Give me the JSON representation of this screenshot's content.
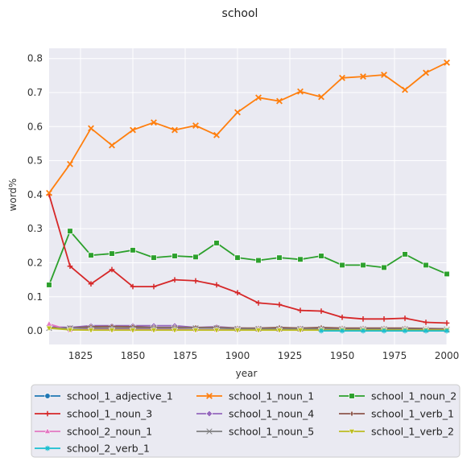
{
  "chart_data": {
    "type": "line",
    "title": "school",
    "xlabel": "year",
    "ylabel": "word%",
    "xlim": [
      1810,
      2000
    ],
    "ylim": [
      -0.04,
      0.83
    ],
    "xticks": [
      "1825",
      "1850",
      "1875",
      "1900",
      "1925",
      "1950",
      "1975",
      "2000"
    ],
    "yticks": [
      "0.0",
      "0.1",
      "0.2",
      "0.3",
      "0.4",
      "0.5",
      "0.6",
      "0.7",
      "0.8"
    ],
    "grid": true,
    "legend_position": "bottom",
    "x": [
      1810,
      1820,
      1830,
      1840,
      1850,
      1860,
      1870,
      1880,
      1890,
      1900,
      1910,
      1920,
      1930,
      1940,
      1950,
      1960,
      1970,
      1980,
      1990,
      2000
    ],
    "series": [
      {
        "name": "school_1_adjective_1",
        "color": "#1f77b4",
        "marker": "circle",
        "values": [
          null,
          null,
          null,
          null,
          null,
          null,
          null,
          null,
          null,
          null,
          null,
          null,
          null,
          null,
          null,
          null,
          null,
          null,
          null,
          null
        ]
      },
      {
        "name": "school_1_noun_1",
        "color": "#ff7f0e",
        "marker": "x",
        "values": [
          0.405,
          0.49,
          0.595,
          0.545,
          0.59,
          0.612,
          0.59,
          0.603,
          0.575,
          0.642,
          0.685,
          0.675,
          0.703,
          0.687,
          0.743,
          0.747,
          0.752,
          0.708,
          0.758,
          0.788
        ]
      },
      {
        "name": "school_1_noun_2",
        "color": "#2ca02c",
        "marker": "square",
        "values": [
          0.135,
          0.293,
          0.222,
          0.227,
          0.237,
          0.215,
          0.22,
          0.217,
          0.258,
          0.215,
          0.207,
          0.215,
          0.21,
          0.22,
          0.193,
          0.193,
          0.186,
          0.225,
          0.193,
          0.167
        ]
      },
      {
        "name": "school_1_noun_3",
        "color": "#d62728",
        "marker": "plus",
        "values": [
          0.4,
          0.19,
          0.138,
          0.18,
          0.13,
          0.13,
          0.15,
          0.147,
          0.135,
          0.112,
          0.082,
          0.077,
          0.06,
          0.058,
          0.04,
          0.035,
          0.035,
          0.037,
          0.025,
          0.023
        ]
      },
      {
        "name": "school_1_noun_4",
        "color": "#9467bd",
        "marker": "diamond",
        "values": [
          0.012,
          0.01,
          0.015,
          0.015,
          0.015,
          0.015,
          0.015,
          0.01,
          0.012,
          0.008,
          0.007,
          0.008,
          0.008,
          0.008,
          0.006,
          0.006,
          0.006,
          0.006,
          0.005,
          0.005
        ]
      },
      {
        "name": "school_1_verb_1",
        "color": "#8c564b",
        "marker": "thin-diamond",
        "values": [
          0.01,
          0.008,
          0.012,
          0.013,
          0.012,
          0.01,
          0.01,
          0.01,
          0.01,
          0.008,
          0.008,
          0.01,
          0.008,
          0.01,
          0.008,
          0.008,
          0.008,
          0.008,
          0.007,
          0.006
        ]
      },
      {
        "name": "school_2_noun_1",
        "color": "#e377c2",
        "marker": "triangle-up",
        "values": [
          0.02,
          0.002,
          0.005,
          0.004,
          0.004,
          0.004,
          0.004,
          0.003,
          0.003,
          0.003,
          0.003,
          0.003,
          0.003,
          0.003,
          0.003,
          0.003,
          0.003,
          0.003,
          0.003,
          0.003
        ]
      },
      {
        "name": "school_1_noun_5",
        "color": "#7f7f7f",
        "marker": "x-thin",
        "values": [
          0.008,
          0.008,
          0.008,
          0.008,
          0.008,
          0.008,
          0.008,
          0.008,
          0.008,
          0.006,
          0.006,
          0.006,
          0.006,
          0.006,
          0.005,
          0.005,
          0.005,
          0.005,
          0.004,
          0.004
        ]
      },
      {
        "name": "school_1_verb_2",
        "color": "#bcbd22",
        "marker": "triangle-down",
        "values": [
          0.008,
          0.003,
          0.002,
          0.002,
          0.002,
          0.002,
          0.002,
          0.002,
          0.002,
          0.002,
          0.002,
          0.002,
          0.002,
          0.002,
          0.002,
          0.002,
          0.002,
          0.002,
          0.002,
          0.002
        ]
      },
      {
        "name": "school_2_verb_1",
        "color": "#17becf",
        "marker": "star",
        "values": [
          null,
          null,
          null,
          null,
          null,
          null,
          null,
          null,
          null,
          null,
          null,
          null,
          null,
          0.0,
          0.0,
          0.0,
          0.0,
          0.0,
          0.0,
          0.0
        ]
      }
    ]
  }
}
